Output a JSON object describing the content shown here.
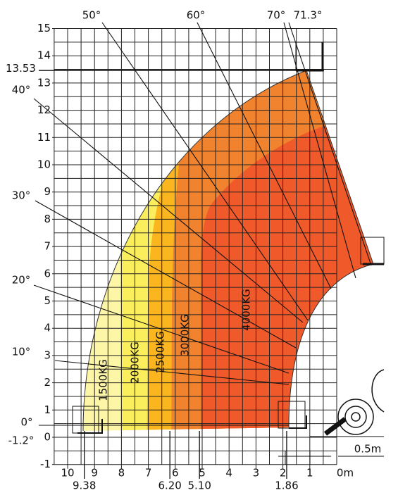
{
  "y_axis": {
    "ticks": [
      15,
      14,
      13,
      12,
      11,
      10,
      9,
      8,
      7,
      6,
      5,
      4,
      3,
      2,
      1,
      0,
      -1
    ]
  },
  "x_axis": {
    "ticks": [
      10,
      9,
      8,
      7,
      6,
      5,
      4,
      3,
      2,
      1
    ],
    "origin_label": "0m"
  },
  "height_marker": "13.53",
  "reach_markers": [
    "9.38",
    "6.20",
    "5.10",
    "1.86"
  ],
  "angles": [
    "50°",
    "60°",
    "70°",
    "71.3°",
    "40°",
    "30°",
    "20°",
    "10°",
    "0°",
    "-1.2°"
  ],
  "loads": [
    "1500KG",
    "2000KG",
    "2500KG",
    "3000KG",
    "4000KG"
  ],
  "scale_label": "0.5m"
}
